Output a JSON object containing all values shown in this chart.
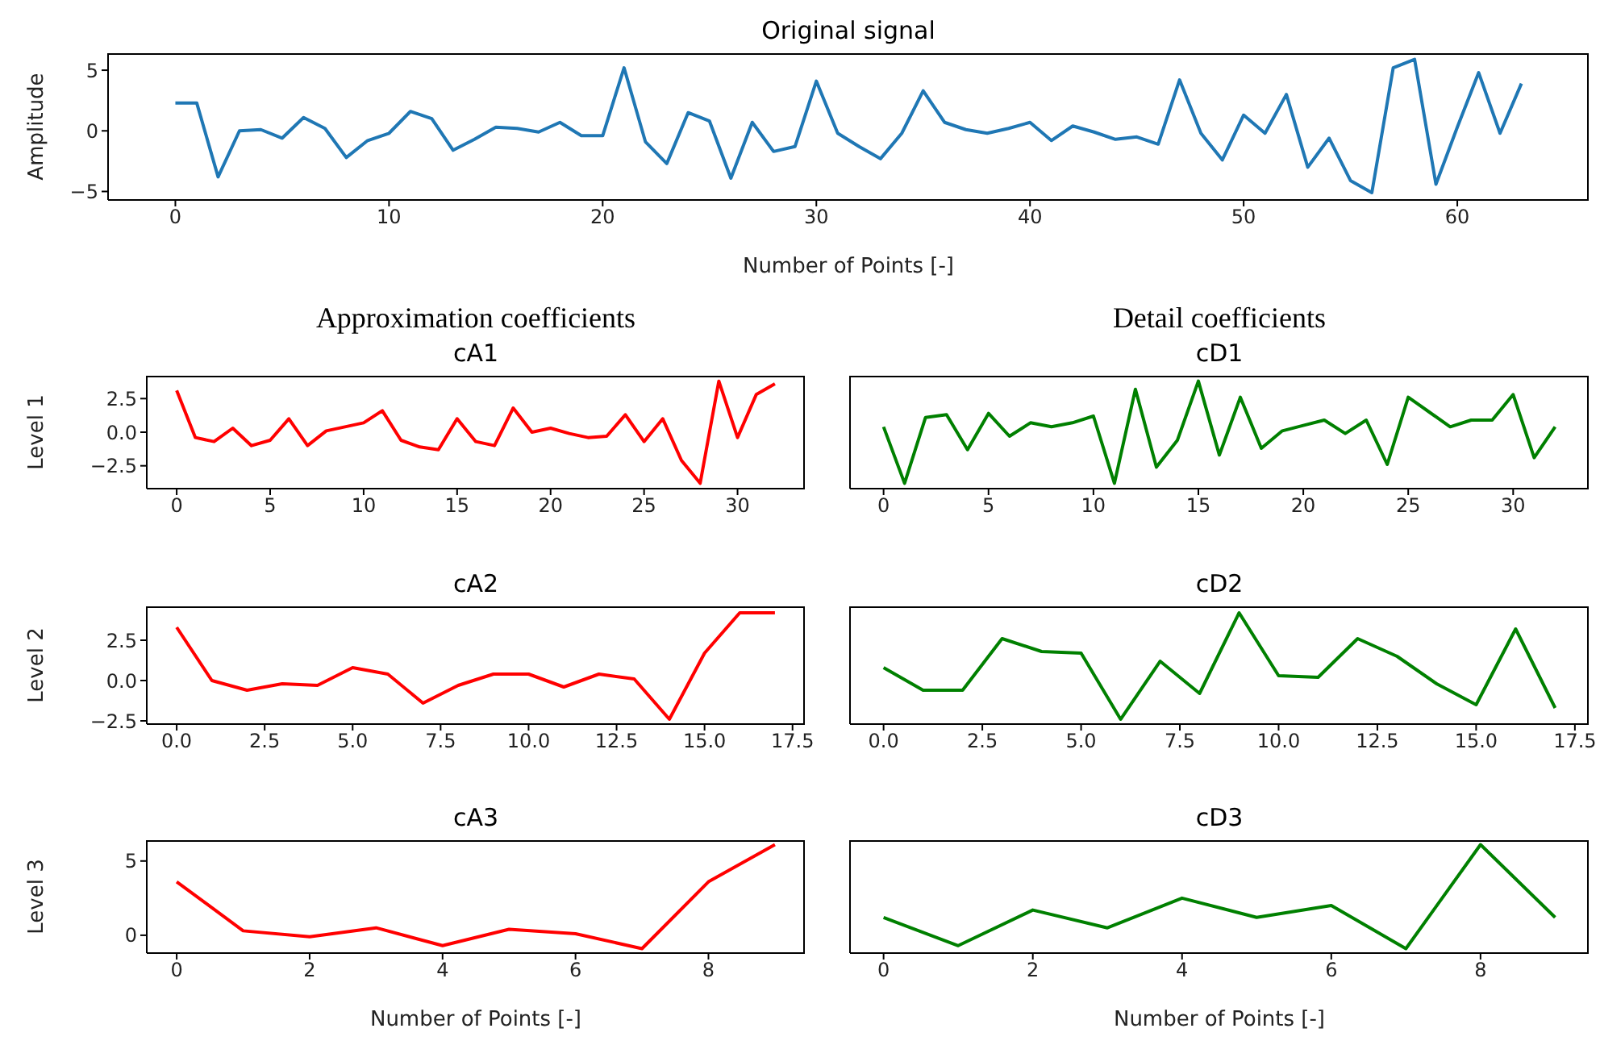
{
  "chart_data": [
    {
      "type": "line",
      "title": "Original signal",
      "xlabel": "Number of Points [-]",
      "ylabel": "Amplitude",
      "color": "#1f77b4",
      "x": [
        0,
        1,
        2,
        3,
        4,
        5,
        6,
        7,
        8,
        9,
        10,
        11,
        12,
        13,
        14,
        15,
        16,
        17,
        18,
        19,
        20,
        21,
        22,
        23,
        24,
        25,
        26,
        27,
        28,
        29,
        30,
        31,
        32,
        33,
        34,
        35,
        36,
        37,
        38,
        39,
        40,
        41,
        42,
        43,
        44,
        45,
        46,
        47,
        48,
        49,
        50,
        51,
        52,
        53,
        54,
        55,
        56,
        57,
        58,
        59,
        60,
        61,
        62,
        63
      ],
      "values": [
        2.3,
        2.3,
        -3.8,
        0.0,
        0.1,
        -0.6,
        1.1,
        0.2,
        -2.2,
        -0.8,
        -0.2,
        1.6,
        1.0,
        -1.6,
        -0.7,
        0.3,
        0.2,
        -0.1,
        0.7,
        -0.4,
        -0.4,
        5.2,
        -0.9,
        -2.7,
        1.5,
        0.8,
        -3.9,
        0.7,
        -1.7,
        -1.3,
        4.1,
        -0.2,
        -1.3,
        -2.3,
        -0.2,
        3.3,
        0.7,
        0.1,
        -0.2,
        0.2,
        0.7,
        -0.8,
        0.4,
        -0.1,
        -0.7,
        -0.5,
        -1.1,
        4.2,
        -0.2,
        -2.4,
        1.3,
        -0.2,
        3.0,
        -3.0,
        -0.6,
        -4.1,
        -5.1,
        5.2,
        5.9,
        -4.4,
        0.3,
        4.8,
        -0.2,
        3.9
      ],
      "xlim": [
        -3.15,
        66.15
      ],
      "xticks": [
        0,
        10,
        20,
        30,
        40,
        50,
        60
      ],
      "ylim": [
        -5.7,
        6.4
      ],
      "yticks": [
        {
          "value": -5,
          "label": "−5"
        },
        0,
        5
      ]
    },
    {
      "type": "line",
      "title": "Approximation coefficients",
      "subtitle": "cA1",
      "ylabel": "Level 1",
      "color": "#ff0000",
      "x": [
        0,
        1,
        2,
        3,
        4,
        5,
        6,
        7,
        8,
        9,
        10,
        11,
        12,
        13,
        14,
        15,
        16,
        17,
        18,
        19,
        20,
        21,
        22,
        23,
        24,
        25,
        26,
        27,
        28,
        29,
        30,
        31,
        32
      ],
      "values": [
        3.1,
        -0.4,
        -0.7,
        0.3,
        -1.0,
        -0.6,
        1.0,
        -1.0,
        0.1,
        0.4,
        0.7,
        1.6,
        -0.6,
        -1.1,
        -1.3,
        1.0,
        -0.7,
        -1.0,
        1.8,
        0.0,
        0.3,
        -0.1,
        -0.4,
        -0.3,
        1.3,
        -0.7,
        1.0,
        -2.1,
        -3.8,
        3.8,
        -0.4,
        2.8,
        3.6
      ],
      "xlim": [
        -1.6,
        33.6
      ],
      "xticks": [
        0,
        5,
        10,
        15,
        20,
        25,
        30
      ],
      "ylim": [
        -4.2,
        4.2
      ],
      "yticks": [
        {
          "value": -2.5,
          "label": "−2.5"
        },
        {
          "value": 0,
          "label": "0.0"
        },
        2.5
      ]
    },
    {
      "type": "line",
      "title": "Detail coefficients",
      "subtitle": "cD1",
      "color": "#008000",
      "tick_labels": "x",
      "x": [
        0,
        1,
        2,
        3,
        4,
        5,
        6,
        7,
        8,
        9,
        10,
        11,
        12,
        13,
        14,
        15,
        16,
        17,
        18,
        19,
        20,
        21,
        22,
        23,
        24,
        25,
        26,
        27,
        28,
        29,
        30,
        31,
        32
      ],
      "values": [
        0.4,
        -3.8,
        1.1,
        1.3,
        -1.3,
        1.4,
        -0.3,
        0.7,
        0.4,
        0.7,
        1.2,
        -3.8,
        3.2,
        -2.6,
        -0.6,
        3.8,
        -1.7,
        2.6,
        -1.2,
        0.1,
        0.5,
        0.9,
        -0.1,
        0.9,
        -2.4,
        2.6,
        1.5,
        0.4,
        0.9,
        0.9,
        2.8,
        -1.9,
        0.4
      ],
      "xlim": [
        -1.6,
        33.6
      ],
      "xticks": [
        0,
        5,
        10,
        15,
        20,
        25,
        30
      ],
      "ylim": [
        -4.2,
        4.2
      ],
      "yticks": [
        -2.5,
        0,
        2.5
      ]
    },
    {
      "type": "line",
      "title": "cA2",
      "ylabel": "Level 2",
      "color": "#ff0000",
      "x": [
        0,
        1,
        2,
        3,
        4,
        5,
        6,
        7,
        8,
        9,
        10,
        11,
        12,
        13,
        14,
        15,
        16,
        17
      ],
      "values": [
        3.3,
        0.0,
        -0.6,
        -0.2,
        -0.3,
        0.8,
        0.4,
        -1.4,
        -0.3,
        0.4,
        0.4,
        -0.4,
        0.4,
        0.1,
        -2.4,
        1.7,
        4.2,
        4.2
      ],
      "xlim": [
        -0.85,
        17.85
      ],
      "xticks": [
        {
          "value": 0,
          "label": "0.0"
        },
        2.5,
        {
          "value": 5,
          "label": "5.0"
        },
        7.5,
        {
          "value": 10,
          "label": "10.0"
        },
        12.5,
        {
          "value": 15,
          "label": "15.0"
        },
        17.5
      ],
      "ylim": [
        -2.7,
        4.6
      ],
      "yticks": [
        {
          "value": -2.5,
          "label": "−2.5"
        },
        {
          "value": 0,
          "label": "0.0"
        },
        2.5
      ]
    },
    {
      "type": "line",
      "title": "cD2",
      "color": "#008000",
      "tick_labels": "x",
      "x": [
        0,
        1,
        2,
        3,
        4,
        5,
        6,
        7,
        8,
        9,
        10,
        11,
        12,
        13,
        14,
        15,
        16,
        17
      ],
      "values": [
        0.8,
        -0.6,
        -0.6,
        2.6,
        1.8,
        1.7,
        -2.4,
        1.2,
        -0.8,
        4.2,
        0.3,
        0.2,
        2.6,
        1.5,
        -0.2,
        -1.5,
        3.2,
        -1.7
      ],
      "xlim": [
        -0.85,
        17.85
      ],
      "xticks": [
        {
          "value": 0,
          "label": "0.0"
        },
        2.5,
        {
          "value": 5,
          "label": "5.0"
        },
        7.5,
        {
          "value": 10,
          "label": "10.0"
        },
        12.5,
        {
          "value": 15,
          "label": "15.0"
        },
        17.5
      ],
      "ylim": [
        -2.7,
        4.6
      ],
      "yticks": [
        -2.5,
        0,
        2.5
      ]
    },
    {
      "type": "line",
      "title": "cA3",
      "xlabel": "Number of Points [-]",
      "ylabel": "Level 3",
      "color": "#ff0000",
      "x": [
        0,
        1,
        2,
        3,
        4,
        5,
        6,
        7,
        8,
        9
      ],
      "values": [
        3.6,
        0.3,
        -0.1,
        0.5,
        -0.7,
        0.4,
        0.1,
        -0.9,
        3.6,
        6.1
      ],
      "xlim": [
        -0.45,
        9.45
      ],
      "xticks": [
        0,
        2,
        4,
        6,
        8
      ],
      "ylim": [
        -1.2,
        6.4
      ],
      "yticks": [
        0,
        5
      ]
    },
    {
      "type": "line",
      "title": "cD3",
      "xlabel": "Number of Points [-]",
      "color": "#008000",
      "tick_labels": "x",
      "x": [
        0,
        1,
        2,
        3,
        4,
        5,
        6,
        7,
        8,
        9
      ],
      "values": [
        1.2,
        -0.7,
        1.7,
        0.5,
        2.5,
        1.2,
        2.0,
        -0.9,
        6.1,
        1.2
      ],
      "xlim": [
        -0.45,
        9.45
      ],
      "xticks": [
        0,
        2,
        4,
        6,
        8
      ],
      "ylim": [
        -1.2,
        6.4
      ],
      "yticks": [
        0,
        5
      ]
    }
  ]
}
